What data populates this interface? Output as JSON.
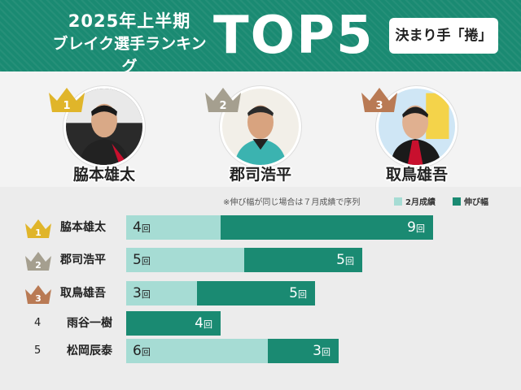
{
  "header": {
    "subtitle_line1": "2025年上半期",
    "subtitle_line2": "ブレイク選手ランキング",
    "title": "TOP5",
    "badge": "決まり手「捲」"
  },
  "podium": [
    {
      "rank": "1",
      "name": "脇本雄太",
      "crown_color": "#e0b52a"
    },
    {
      "rank": "2",
      "name": "郡司浩平",
      "crown_color": "#a59f8f"
    },
    {
      "rank": "3",
      "name": "取鳥雄吾",
      "crown_color": "#b97a54"
    }
  ],
  "chart_data": {
    "type": "bar",
    "note": "※伸び幅が同じ場合は７月成績で序列",
    "unit": "回",
    "categories": [
      "脇本雄太",
      "郡司浩平",
      "取鳥雄吾",
      "雨谷一樹",
      "松岡辰泰"
    ],
    "ranks": [
      "1",
      "2",
      "3",
      "4",
      "5"
    ],
    "series": [
      {
        "name": "2月成績",
        "color": "#a6dcd4",
        "values": [
          4,
          5,
          3,
          0,
          6
        ]
      },
      {
        "name": "伸び幅",
        "color": "#1a8a72",
        "values": [
          9,
          5,
          5,
          4,
          3
        ]
      }
    ],
    "stacked": true,
    "legend": "top-right"
  },
  "colors": {
    "gold": "#e0b52a",
    "silver": "#a59f8f",
    "bronze": "#b97a54",
    "light": "#a6dcd4",
    "dark": "#1a8a72"
  }
}
